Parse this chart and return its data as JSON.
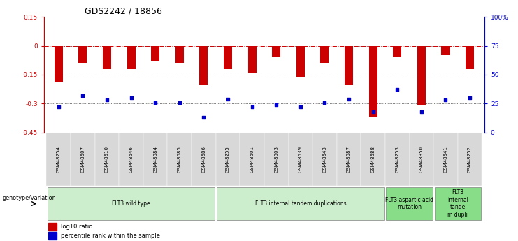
{
  "title": "GDS2242 / 18856",
  "samples": [
    "GSM48254",
    "GSM48507",
    "GSM48510",
    "GSM48546",
    "GSM48584",
    "GSM48585",
    "GSM48586",
    "GSM48255",
    "GSM48501",
    "GSM48503",
    "GSM48539",
    "GSM48543",
    "GSM48587",
    "GSM48588",
    "GSM48253",
    "GSM48350",
    "GSM48541",
    "GSM48252"
  ],
  "log10_ratio": [
    -0.19,
    -0.09,
    -0.12,
    -0.12,
    -0.08,
    -0.09,
    -0.2,
    -0.12,
    -0.14,
    -0.06,
    -0.16,
    -0.09,
    -0.2,
    -0.37,
    -0.06,
    -0.31,
    -0.05,
    -0.12
  ],
  "percentile_rank": [
    22,
    32,
    28,
    30,
    26,
    26,
    13,
    29,
    22,
    24,
    22,
    26,
    29,
    18,
    37,
    18,
    28,
    30
  ],
  "groups": [
    {
      "label": "FLT3 wild type",
      "start": 0,
      "end": 6,
      "color": "#cceecc"
    },
    {
      "label": "FLT3 internal tandem duplications",
      "start": 7,
      "end": 13,
      "color": "#cceecc"
    },
    {
      "label": "FLT3 aspartic acid\nmutation",
      "start": 14,
      "end": 15,
      "color": "#88dd88"
    },
    {
      "label": "FLT3\ninternal\ntande\nm dupli",
      "start": 16,
      "end": 17,
      "color": "#88dd88"
    }
  ],
  "ylim_left": [
    -0.45,
    0.15
  ],
  "ylim_right": [
    0,
    100
  ],
  "yticks_left": [
    0.15,
    0.0,
    -0.15,
    -0.3,
    -0.45
  ],
  "yticks_right": [
    100,
    75,
    50,
    25,
    0
  ],
  "bar_color": "#cc0000",
  "dot_color": "#0000cc",
  "legend_bar_label": "log10 ratio",
  "legend_dot_label": "percentile rank within the sample",
  "genotype_label": "genotype/variation",
  "background_color": "#ffffff",
  "dotted_line_values": [
    -0.15,
    -0.3
  ],
  "zero_line_color": "#cc0000",
  "bar_width": 0.35
}
